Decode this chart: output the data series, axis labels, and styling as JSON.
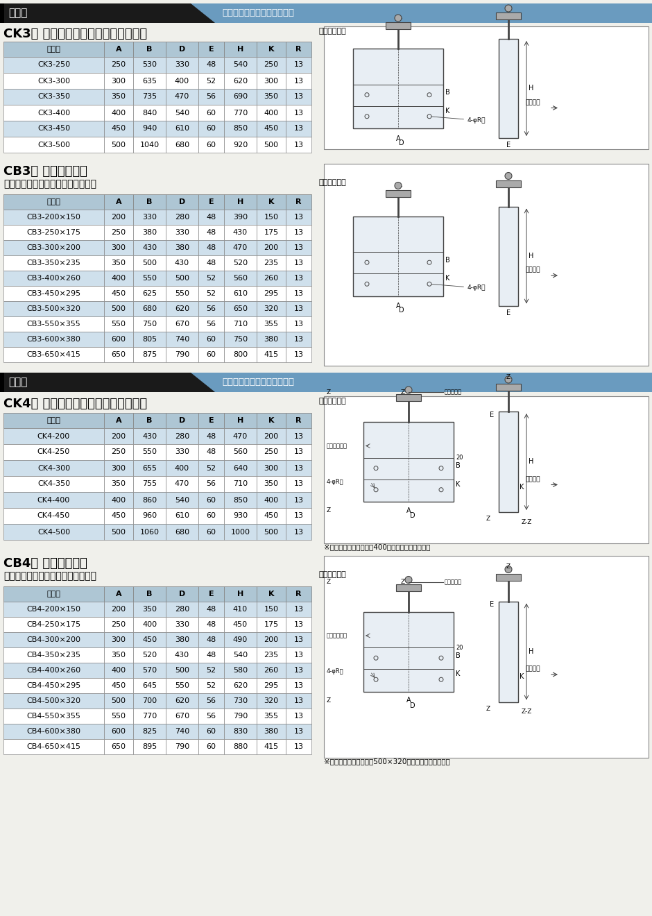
{
  "page_bg": "#f0f0eb",
  "section1_header_left": "仕　様",
  "section1_header_right": "《取手タイプ（三方水密）》",
  "section2_header_left": "仕　様",
  "section2_header_right": "《取手タイプ（四方水密）》",
  "ck3_title": "CK3型 手動式水門扇（角型三方水密）",
  "ck3_unit": "（単位：㎜）",
  "ck3_cols": [
    "品　番",
    "A",
    "B",
    "D",
    "E",
    "H",
    "K",
    "R"
  ],
  "ck3_rows": [
    [
      "CK3-250",
      "250",
      "530",
      "330",
      "48",
      "540",
      "250",
      "13"
    ],
    [
      "CK3-300",
      "300",
      "635",
      "400",
      "52",
      "620",
      "300",
      "13"
    ],
    [
      "CK3-350",
      "350",
      "735",
      "470",
      "56",
      "690",
      "350",
      "13"
    ],
    [
      "CK3-400",
      "400",
      "840",
      "540",
      "60",
      "770",
      "400",
      "13"
    ],
    [
      "CK3-450",
      "450",
      "940",
      "610",
      "60",
      "850",
      "450",
      "13"
    ],
    [
      "CK3-500",
      "500",
      "1040",
      "680",
      "60",
      "920",
      "500",
      "13"
    ]
  ],
  "cb3_title1": "CB3型 手動式水門扇",
  "cb3_title2": "（ベンチフリューム角型三方水密）",
  "cb3_unit": "（単位：㎜）",
  "cb3_cols": [
    "品　番",
    "A",
    "B",
    "D",
    "E",
    "H",
    "K",
    "R"
  ],
  "cb3_rows": [
    [
      "CB3-200×150",
      "200",
      "330",
      "280",
      "48",
      "390",
      "150",
      "13"
    ],
    [
      "CB3-250×175",
      "250",
      "380",
      "330",
      "48",
      "430",
      "175",
      "13"
    ],
    [
      "CB3-300×200",
      "300",
      "430",
      "380",
      "48",
      "470",
      "200",
      "13"
    ],
    [
      "CB3-350×235",
      "350",
      "500",
      "430",
      "48",
      "520",
      "235",
      "13"
    ],
    [
      "CB3-400×260",
      "400",
      "550",
      "500",
      "52",
      "560",
      "260",
      "13"
    ],
    [
      "CB3-450×295",
      "450",
      "625",
      "550",
      "52",
      "610",
      "295",
      "13"
    ],
    [
      "CB3-500×320",
      "500",
      "680",
      "620",
      "56",
      "650",
      "320",
      "13"
    ],
    [
      "CB3-550×355",
      "550",
      "750",
      "670",
      "56",
      "710",
      "355",
      "13"
    ],
    [
      "CB3-600×380",
      "600",
      "805",
      "740",
      "60",
      "750",
      "380",
      "13"
    ],
    [
      "CB3-650×415",
      "650",
      "875",
      "790",
      "60",
      "800",
      "415",
      "13"
    ]
  ],
  "ck4_title": "CK4型 手動式水門扇（角型四方水密）",
  "ck4_unit": "（単位：㎜）",
  "ck4_cols": [
    "品　番",
    "A",
    "B",
    "D",
    "E",
    "H",
    "K",
    "R"
  ],
  "ck4_rows": [
    [
      "CK4-200",
      "200",
      "430",
      "280",
      "48",
      "470",
      "200",
      "13"
    ],
    [
      "CK4-250",
      "250",
      "550",
      "330",
      "48",
      "560",
      "250",
      "13"
    ],
    [
      "CK4-300",
      "300",
      "655",
      "400",
      "52",
      "640",
      "300",
      "13"
    ],
    [
      "CK4-350",
      "350",
      "755",
      "470",
      "56",
      "710",
      "350",
      "13"
    ],
    [
      "CK4-400",
      "400",
      "860",
      "540",
      "60",
      "850",
      "400",
      "13"
    ],
    [
      "CK4-450",
      "450",
      "960",
      "610",
      "60",
      "930",
      "450",
      "13"
    ],
    [
      "CK4-500",
      "500",
      "1060",
      "680",
      "60",
      "1000",
      "500",
      "13"
    ]
  ],
  "ck4_note": "※減圧レバーは、サイズ400以上のみとなります。",
  "cb4_title1": "CB4型 手動式水門扇",
  "cb4_title2": "（ベンチフリューム角型四方水密）",
  "cb4_unit": "（単位：㎜）",
  "cb4_cols": [
    "品　番",
    "A",
    "B",
    "D",
    "E",
    "H",
    "K",
    "R"
  ],
  "cb4_rows": [
    [
      "CB4-200×150",
      "200",
      "350",
      "280",
      "48",
      "410",
      "150",
      "13"
    ],
    [
      "CB4-250×175",
      "250",
      "400",
      "330",
      "48",
      "450",
      "175",
      "13"
    ],
    [
      "CB4-300×200",
      "300",
      "450",
      "380",
      "48",
      "490",
      "200",
      "13"
    ],
    [
      "CB4-350×235",
      "350",
      "520",
      "430",
      "48",
      "540",
      "235",
      "13"
    ],
    [
      "CB4-400×260",
      "400",
      "570",
      "500",
      "52",
      "580",
      "260",
      "13"
    ],
    [
      "CB4-450×295",
      "450",
      "645",
      "550",
      "52",
      "620",
      "295",
      "13"
    ],
    [
      "CB4-500×320",
      "500",
      "700",
      "620",
      "56",
      "730",
      "320",
      "13"
    ],
    [
      "CB4-550×355",
      "550",
      "770",
      "670",
      "56",
      "790",
      "355",
      "13"
    ],
    [
      "CB4-600×380",
      "600",
      "825",
      "740",
      "60",
      "830",
      "380",
      "13"
    ],
    [
      "CB4-650×415",
      "650",
      "895",
      "790",
      "60",
      "880",
      "415",
      "13"
    ]
  ],
  "cb4_note": "※減圧レバーは、サイズ500×320以上のみとなります。",
  "header_black_bg": "#1a1a1a",
  "header_blue_bg": "#6a9bbf",
  "table_header_bg": "#aec6d4",
  "table_row_blue": "#cfe0ec",
  "table_row_white": "#ffffff",
  "table_border": "#888888",
  "bar_color": "#1a1a1a",
  "diag_box_border": "#888888",
  "diag_line_color": "#444444"
}
